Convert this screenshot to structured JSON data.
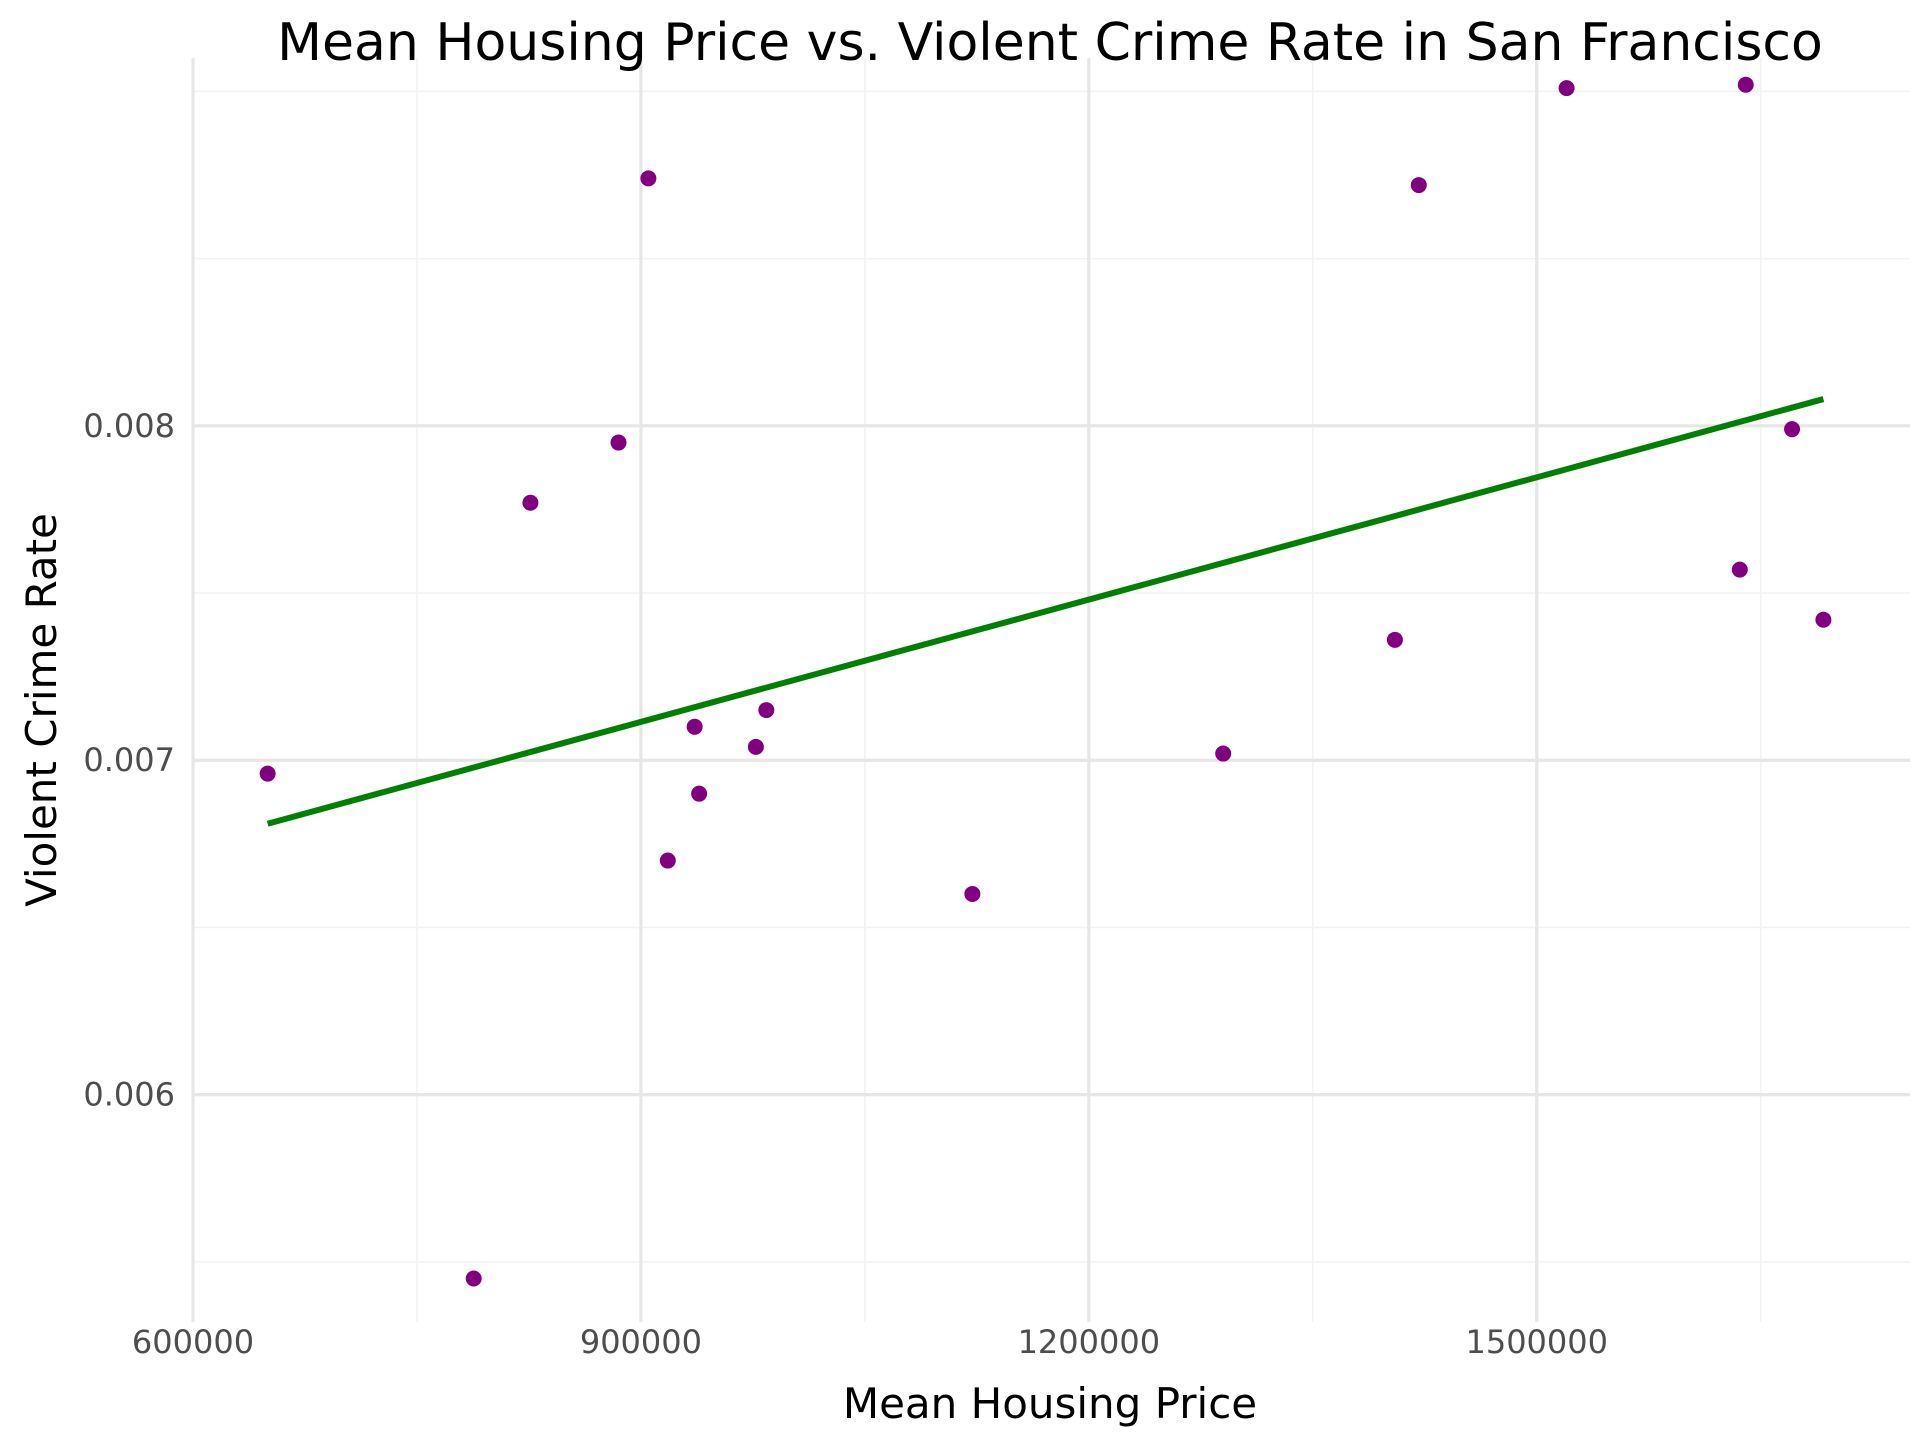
{
  "chart_data": {
    "type": "scatter",
    "title": "Mean Housing Price vs. Violent Crime Rate in San Francisco",
    "xlabel": "Mean Housing Price",
    "ylabel": "Violent Crime Rate",
    "xlim": [
      600000,
      1750000
    ],
    "ylim": [
      0.00532,
      0.0091
    ],
    "x_ticks": [
      {
        "value": 600000,
        "label": "600000"
      },
      {
        "value": 900000,
        "label": "900000"
      },
      {
        "value": 1200000,
        "label": "1200000"
      },
      {
        "value": 1500000,
        "label": "1500000"
      }
    ],
    "y_ticks": [
      {
        "value": 0.006,
        "label": "0.006"
      },
      {
        "value": 0.007,
        "label": "0.007"
      },
      {
        "value": 0.008,
        "label": "0.008"
      }
    ],
    "grid": true,
    "points": [
      {
        "x": 650000,
        "y": 0.00696
      },
      {
        "x": 788000,
        "y": 0.00545
      },
      {
        "x": 826000,
        "y": 0.00777
      },
      {
        "x": 885000,
        "y": 0.00795
      },
      {
        "x": 905000,
        "y": 0.00874
      },
      {
        "x": 918000,
        "y": 0.0067
      },
      {
        "x": 936000,
        "y": 0.0071
      },
      {
        "x": 939000,
        "y": 0.0069
      },
      {
        "x": 977000,
        "y": 0.00704
      },
      {
        "x": 984000,
        "y": 0.00715
      },
      {
        "x": 1122000,
        "y": 0.0066
      },
      {
        "x": 1290000,
        "y": 0.00702
      },
      {
        "x": 1405000,
        "y": 0.00736
      },
      {
        "x": 1421000,
        "y": 0.00872
      },
      {
        "x": 1520000,
        "y": 0.00901
      },
      {
        "x": 1636000,
        "y": 0.00757
      },
      {
        "x": 1640000,
        "y": 0.00902
      },
      {
        "x": 1671000,
        "y": 0.00799
      },
      {
        "x": 1692000,
        "y": 0.00742
      }
    ],
    "trend_line": {
      "x": [
        650000,
        1692000
      ],
      "y": [
        0.00681,
        0.00808
      ]
    },
    "colors": {
      "points": "#800080",
      "trend_line": "#008000",
      "grid_major": "#e6e6e6",
      "grid_minor": "#f2f2f2"
    }
  }
}
